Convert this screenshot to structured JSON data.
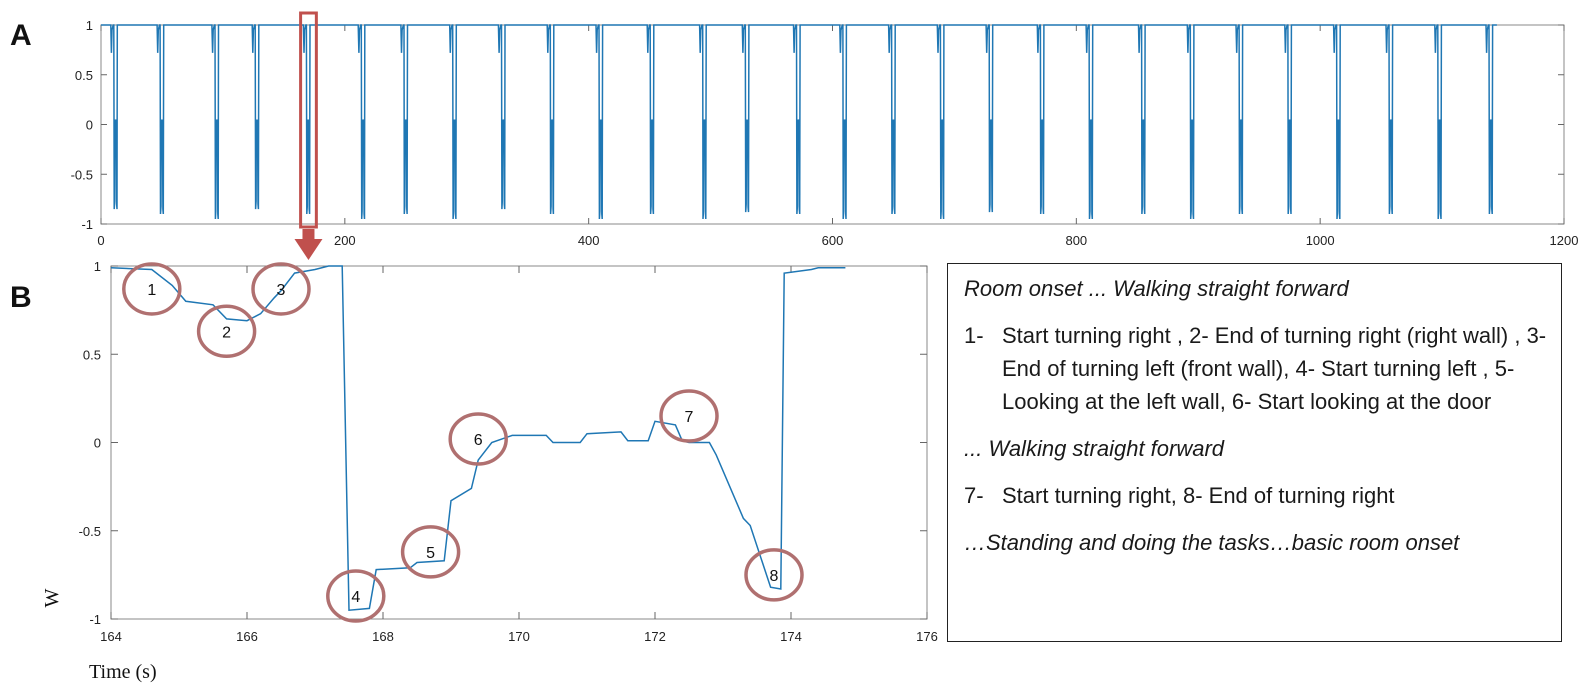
{
  "chart_data": [
    {
      "type": "line",
      "panel_label": "A",
      "xlim": [
        0,
        1200
      ],
      "ylim": [
        -1,
        1
      ],
      "x_ticks": [
        "0",
        "200",
        "400",
        "600",
        "800",
        "1000",
        "1200"
      ],
      "y_ticks": [
        "-1",
        "-0.5",
        "0",
        "0.5",
        "1"
      ],
      "pattern": {
        "description_units": "seconds",
        "signal_start": 0,
        "signal_end": 1145,
        "dip_times": [
          12,
          50,
          95,
          128,
          170,
          215,
          250,
          290,
          330,
          370,
          410,
          452,
          495,
          530,
          572,
          610,
          650,
          690,
          730,
          772,
          812,
          855,
          895,
          935,
          975,
          1015,
          1058,
          1098,
          1140
        ],
        "dip_min_values": [
          -0.85,
          -0.9,
          -0.95,
          -0.85,
          -0.9,
          -0.95,
          -0.9,
          -0.95,
          -0.85,
          -0.9,
          -0.95,
          -0.9,
          -0.95,
          -0.88,
          -0.9,
          -0.95,
          -0.9,
          -0.95,
          -0.88,
          -0.9,
          -0.95,
          -0.9,
          -0.95,
          -0.9,
          -0.9,
          -0.95,
          -0.9,
          -0.95,
          -0.9
        ],
        "plateau_value": 0.0
      },
      "highlight_range": [
        167,
        175
      ]
    },
    {
      "type": "line",
      "panel_label": "B",
      "xlabel": "Time (s)",
      "ylabel": "W",
      "xlim": [
        164,
        176
      ],
      "ylim": [
        -1,
        1
      ],
      "x_ticks": [
        "164",
        "166",
        "168",
        "170",
        "172",
        "174",
        "176"
      ],
      "y_ticks": [
        "-1",
        "-0.5",
        "0",
        "0.5",
        "1"
      ],
      "x": [
        164.0,
        164.6,
        164.9,
        165.1,
        165.5,
        165.7,
        166.0,
        166.2,
        166.4,
        166.5,
        166.7,
        167.0,
        167.2,
        167.4,
        167.5,
        167.8,
        167.9,
        168.4,
        168.5,
        168.9,
        169.0,
        169.3,
        169.4,
        169.6,
        169.9,
        170.4,
        170.5,
        170.9,
        171.0,
        171.5,
        171.6,
        171.9,
        172.0,
        172.3,
        172.4,
        172.5,
        172.8,
        172.9,
        173.3,
        173.4,
        173.7,
        173.85,
        173.9,
        174.3,
        174.4,
        174.8
      ],
      "y": [
        0.99,
        0.98,
        0.89,
        0.8,
        0.78,
        0.7,
        0.69,
        0.73,
        0.82,
        0.86,
        0.96,
        0.98,
        1.0,
        1.0,
        -0.95,
        -0.94,
        -0.72,
        -0.71,
        -0.68,
        -0.67,
        -0.33,
        -0.26,
        -0.1,
        0.0,
        0.04,
        0.04,
        0.0,
        0.0,
        0.05,
        0.06,
        0.01,
        0.01,
        0.12,
        0.1,
        0.01,
        0.0,
        0.0,
        -0.07,
        -0.43,
        -0.47,
        -0.82,
        -0.83,
        0.96,
        0.98,
        0.99,
        0.99
      ],
      "markers": [
        {
          "label": "1",
          "x": 164.6,
          "y": 0.87
        },
        {
          "label": "2",
          "x": 165.7,
          "y": 0.63
        },
        {
          "label": "3",
          "x": 166.5,
          "y": 0.87
        },
        {
          "label": "4",
          "x": 167.6,
          "y": -0.87
        },
        {
          "label": "5",
          "x": 168.7,
          "y": -0.62
        },
        {
          "label": "6",
          "x": 169.4,
          "y": 0.02
        },
        {
          "label": "7",
          "x": 172.5,
          "y": 0.15
        },
        {
          "label": "8",
          "x": 173.75,
          "y": -0.75
        }
      ]
    }
  ],
  "colors": {
    "line": "#1f77b4",
    "highlight": "#c0504d",
    "marker_circle": "#b07070"
  },
  "legend": {
    "heading": "Room onset ... Walking straight forward",
    "items": [
      {
        "num": "1-",
        "text": "Start turning right , 2- End of turning right (right wall) , 3- End of turning left (front wall), 4- Start turning left , 5- Looking at the left wall, 6- Start looking at the door"
      }
    ],
    "middle": "... Walking straight forward",
    "items2": [
      {
        "num": "7-",
        "text": "Start turning right, 8- End of turning right"
      }
    ],
    "footer": "…Standing and doing the tasks…basic room onset"
  }
}
